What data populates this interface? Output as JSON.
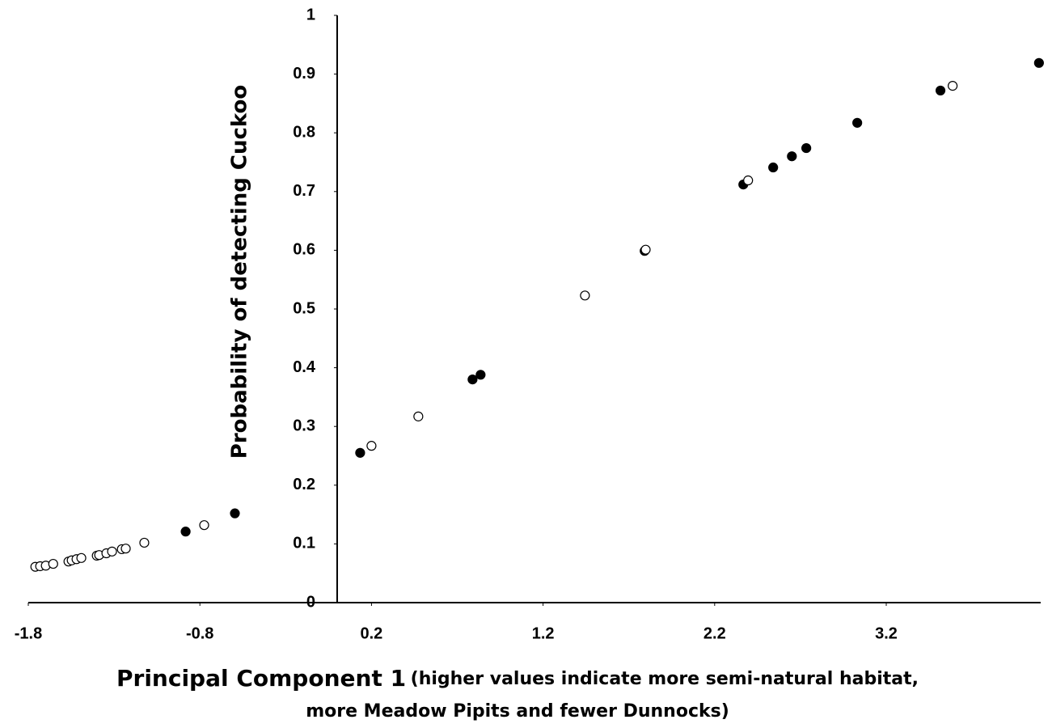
{
  "chart_data": {
    "type": "scatter",
    "ylabel": "Probability of detecting Cuckoo",
    "xlabel": "Principal Component 1",
    "xlabel_note": [
      "(higher values indicate more semi-natural habitat,",
      "more Meadow Pipits and fewer Dunnocks)"
    ],
    "xlim": [
      -1.8,
      4.1
    ],
    "ylim": [
      0,
      1
    ],
    "xticks": [
      -1.8,
      -0.8,
      0.2,
      1.2,
      2.2,
      3.2
    ],
    "yticks": [
      0,
      0.1,
      0.2,
      0.3,
      0.4,
      0.5,
      0.6,
      0.7,
      0.8,
      0.9,
      1
    ],
    "series": [
      {
        "color": "#000000",
        "fill": "#000000",
        "x": [
          -0.883,
          -0.596,
          0.134,
          0.789,
          0.836,
          1.792,
          2.367,
          2.541,
          2.65,
          2.734,
          3.031,
          3.516,
          4.09
        ],
        "y": [
          0.121,
          0.152,
          0.255,
          0.38,
          0.388,
          0.599,
          0.712,
          0.741,
          0.76,
          0.774,
          0.817,
          0.872,
          0.919
        ]
      },
      {
        "color": "#000000",
        "fill": "#ffffff",
        "x": [
          -1.759,
          -1.731,
          -1.698,
          -1.655,
          -1.566,
          -1.547,
          -1.519,
          -1.491,
          -1.401,
          -1.387,
          -1.345,
          -1.312,
          -1.255,
          -1.232,
          -1.124,
          -0.775,
          0.2,
          0.473,
          1.444,
          1.798,
          2.395,
          3.587
        ],
        "y": [
          0.061,
          0.062,
          0.063,
          0.066,
          0.07,
          0.072,
          0.074,
          0.076,
          0.08,
          0.081,
          0.084,
          0.087,
          0.091,
          0.092,
          0.102,
          0.132,
          0.267,
          0.317,
          0.523,
          0.601,
          0.719,
          0.88
        ]
      }
    ]
  }
}
